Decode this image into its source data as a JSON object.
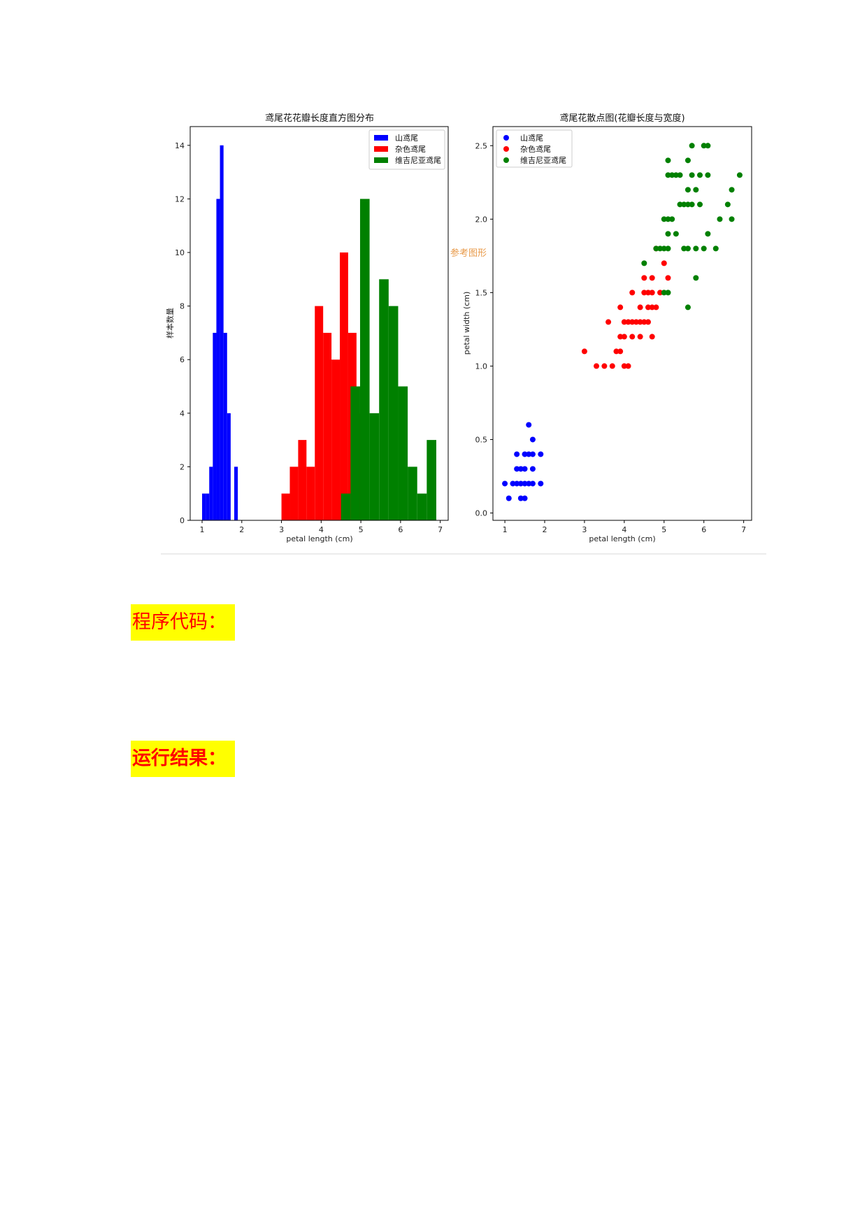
{
  "figure": {
    "watermark": "参考图形",
    "colors": {
      "setosa": "#0000ff",
      "versicolor": "#ff0000",
      "virginica": "#008000"
    }
  },
  "chart_data": [
    {
      "type": "bar",
      "subtype": "histogram",
      "title": "鸢尾花花瓣长度直方图分布",
      "xlabel": "petal length (cm)",
      "ylabel": "样本数量",
      "xlim": [
        0.7,
        7.2
      ],
      "ylim": [
        0,
        14.7
      ],
      "xticks": [
        1,
        2,
        3,
        4,
        5,
        6,
        7
      ],
      "yticks": [
        0,
        2,
        4,
        6,
        8,
        10,
        12,
        14
      ],
      "legend_position": "top-right",
      "series": [
        {
          "name": "山鸢尾",
          "color": "#0000ff",
          "bins": [
            [
              1.0,
              1.09,
              1
            ],
            [
              1.09,
              1.18,
              1
            ],
            [
              1.18,
              1.27,
              2
            ],
            [
              1.27,
              1.36,
              7
            ],
            [
              1.36,
              1.45,
              12
            ],
            [
              1.45,
              1.54,
              14
            ],
            [
              1.54,
              1.63,
              7
            ],
            [
              1.63,
              1.72,
              4
            ],
            [
              1.72,
              1.81,
              0
            ],
            [
              1.81,
              1.9,
              2
            ]
          ]
        },
        {
          "name": "杂色鸢尾",
          "color": "#ff0000",
          "bins": [
            [
              3.0,
              3.21,
              1
            ],
            [
              3.21,
              3.42,
              2
            ],
            [
              3.42,
              3.63,
              3
            ],
            [
              3.63,
              3.84,
              2
            ],
            [
              3.84,
              4.05,
              8
            ],
            [
              4.05,
              4.26,
              7
            ],
            [
              4.26,
              4.47,
              6
            ],
            [
              4.47,
              4.68,
              10
            ],
            [
              4.68,
              4.89,
              7
            ],
            [
              4.89,
              5.1,
              4
            ]
          ]
        },
        {
          "name": "维吉尼亚鸢尾",
          "color": "#008000",
          "bins": [
            [
              4.5,
              4.74,
              1
            ],
            [
              4.74,
              4.98,
              5
            ],
            [
              4.98,
              5.22,
              12
            ],
            [
              5.22,
              5.46,
              4
            ],
            [
              5.46,
              5.7,
              9
            ],
            [
              5.7,
              5.94,
              8
            ],
            [
              5.94,
              6.18,
              5
            ],
            [
              6.18,
              6.42,
              2
            ],
            [
              6.42,
              6.66,
              1
            ],
            [
              6.66,
              6.9,
              3
            ]
          ]
        }
      ]
    },
    {
      "type": "scatter",
      "title": "鸢尾花散点图(花瓣长度与宽度)",
      "xlabel": "petal length (cm)",
      "ylabel": "petal width (cm)",
      "xlim": [
        0.7,
        7.2
      ],
      "ylim": [
        -0.05,
        2.63
      ],
      "xticks": [
        1,
        2,
        3,
        4,
        5,
        6,
        7
      ],
      "yticks": [
        0.0,
        0.5,
        1.0,
        1.5,
        2.0,
        2.5
      ],
      "legend_position": "top-left",
      "series": [
        {
          "name": "山鸢尾",
          "color": "#0000ff",
          "points": [
            [
              1.0,
              0.2
            ],
            [
              1.1,
              0.1
            ],
            [
              1.2,
              0.2
            ],
            [
              1.3,
              0.2
            ],
            [
              1.3,
              0.3
            ],
            [
              1.3,
              0.4
            ],
            [
              1.4,
              0.1
            ],
            [
              1.4,
              0.2
            ],
            [
              1.4,
              0.3
            ],
            [
              1.5,
              0.1
            ],
            [
              1.5,
              0.2
            ],
            [
              1.5,
              0.3
            ],
            [
              1.5,
              0.4
            ],
            [
              1.6,
              0.2
            ],
            [
              1.6,
              0.4
            ],
            [
              1.6,
              0.6
            ],
            [
              1.7,
              0.2
            ],
            [
              1.7,
              0.3
            ],
            [
              1.7,
              0.4
            ],
            [
              1.7,
              0.5
            ],
            [
              1.9,
              0.2
            ],
            [
              1.9,
              0.4
            ]
          ]
        },
        {
          "name": "杂色鸢尾",
          "color": "#ff0000",
          "points": [
            [
              3.0,
              1.1
            ],
            [
              3.3,
              1.0
            ],
            [
              3.5,
              1.0
            ],
            [
              3.6,
              1.3
            ],
            [
              3.7,
              1.0
            ],
            [
              3.8,
              1.1
            ],
            [
              3.9,
              1.1
            ],
            [
              3.9,
              1.2
            ],
            [
              3.9,
              1.4
            ],
            [
              4.0,
              1.0
            ],
            [
              4.0,
              1.2
            ],
            [
              4.0,
              1.3
            ],
            [
              4.1,
              1.0
            ],
            [
              4.1,
              1.3
            ],
            [
              4.2,
              1.2
            ],
            [
              4.2,
              1.3
            ],
            [
              4.2,
              1.5
            ],
            [
              4.3,
              1.3
            ],
            [
              4.4,
              1.2
            ],
            [
              4.4,
              1.3
            ],
            [
              4.4,
              1.4
            ],
            [
              4.5,
              1.3
            ],
            [
              4.5,
              1.5
            ],
            [
              4.5,
              1.6
            ],
            [
              4.6,
              1.3
            ],
            [
              4.6,
              1.4
            ],
            [
              4.6,
              1.5
            ],
            [
              4.7,
              1.2
            ],
            [
              4.7,
              1.4
            ],
            [
              4.7,
              1.5
            ],
            [
              4.7,
              1.6
            ],
            [
              4.8,
              1.4
            ],
            [
              4.8,
              1.8
            ],
            [
              4.9,
              1.5
            ],
            [
              5.0,
              1.7
            ],
            [
              5.1,
              1.6
            ]
          ]
        },
        {
          "name": "维吉尼亚鸢尾",
          "color": "#008000",
          "points": [
            [
              4.5,
              1.7
            ],
            [
              4.8,
              1.8
            ],
            [
              4.9,
              1.8
            ],
            [
              5.0,
              1.5
            ],
            [
              5.0,
              1.8
            ],
            [
              5.0,
              2.0
            ],
            [
              5.1,
              1.5
            ],
            [
              5.1,
              1.8
            ],
            [
              5.1,
              1.9
            ],
            [
              5.1,
              2.0
            ],
            [
              5.1,
              2.3
            ],
            [
              5.1,
              2.4
            ],
            [
              5.2,
              2.0
            ],
            [
              5.2,
              2.3
            ],
            [
              5.3,
              1.9
            ],
            [
              5.3,
              2.3
            ],
            [
              5.4,
              2.1
            ],
            [
              5.4,
              2.3
            ],
            [
              5.5,
              1.8
            ],
            [
              5.5,
              2.1
            ],
            [
              5.6,
              1.4
            ],
            [
              5.6,
              1.8
            ],
            [
              5.6,
              2.1
            ],
            [
              5.6,
              2.2
            ],
            [
              5.6,
              2.4
            ],
            [
              5.7,
              2.1
            ],
            [
              5.7,
              2.3
            ],
            [
              5.7,
              2.5
            ],
            [
              5.8,
              1.6
            ],
            [
              5.8,
              1.8
            ],
            [
              5.8,
              2.2
            ],
            [
              5.9,
              2.1
            ],
            [
              5.9,
              2.3
            ],
            [
              6.0,
              1.8
            ],
            [
              6.0,
              2.5
            ],
            [
              6.1,
              1.9
            ],
            [
              6.1,
              2.3
            ],
            [
              6.1,
              2.5
            ],
            [
              6.3,
              1.8
            ],
            [
              6.4,
              2.0
            ],
            [
              6.6,
              2.1
            ],
            [
              6.7,
              2.0
            ],
            [
              6.7,
              2.2
            ],
            [
              6.9,
              2.3
            ]
          ]
        }
      ]
    }
  ],
  "sections": {
    "code_heading": "程序代码：",
    "result_heading": "运行结果："
  }
}
